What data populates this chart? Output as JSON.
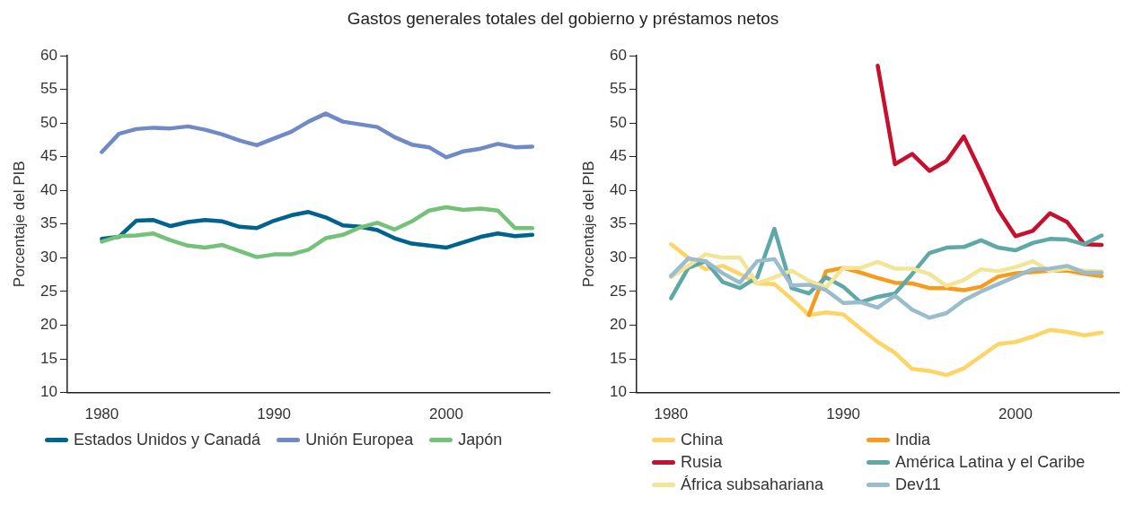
{
  "chart_data": [
    {
      "type": "line",
      "title": "Gastos generales totales del gobierno y préstamos netos",
      "ylabel": "Porcentaje del PIB",
      "x": [
        1980,
        1981,
        1982,
        1983,
        1984,
        1985,
        1986,
        1987,
        1988,
        1989,
        1990,
        1991,
        1992,
        1993,
        1994,
        1995,
        1996,
        1997,
        1998,
        1999,
        2000,
        2001,
        2002,
        2003,
        2004,
        2005
      ],
      "xlim": [
        1978,
        2006
      ],
      "xticks": [
        1980,
        1990,
        2000
      ],
      "ylim": [
        10,
        60
      ],
      "yticks": [
        10,
        15,
        20,
        25,
        30,
        35,
        40,
        45,
        50,
        55,
        60
      ],
      "legend": "bottom",
      "marker": "none",
      "series": [
        {
          "name": "Estados Unidos y Canadá",
          "color": "#00628f",
          "values": [
            32.8,
            33.1,
            35.5,
            35.6,
            34.7,
            35.3,
            35.6,
            35.4,
            34.6,
            34.4,
            35.5,
            36.3,
            36.8,
            36.0,
            34.8,
            34.6,
            34.1,
            32.9,
            32.1,
            31.8,
            31.5,
            32.3,
            33.1,
            33.6,
            33.2,
            33.4
          ]
        },
        {
          "name": "Unión Europea",
          "color": "#7089c9",
          "values": [
            45.7,
            48.4,
            49.1,
            49.3,
            49.2,
            49.5,
            49.0,
            48.3,
            47.4,
            46.7,
            47.7,
            48.7,
            50.2,
            51.4,
            50.2,
            49.8,
            49.4,
            47.9,
            46.8,
            46.4,
            44.9,
            45.8,
            46.2,
            46.9,
            46.4,
            46.5
          ]
        },
        {
          "name": "Japón",
          "color": "#74c27a",
          "values": [
            32.4,
            33.2,
            33.3,
            33.6,
            32.6,
            31.8,
            31.5,
            31.9,
            31.0,
            30.1,
            30.5,
            30.5,
            31.2,
            32.9,
            33.4,
            34.5,
            35.2,
            34.2,
            35.4,
            37.0,
            37.5,
            37.1,
            37.3,
            37.0,
            34.4,
            34.4
          ]
        }
      ]
    },
    {
      "type": "line",
      "ylabel": "Porcentaje del PIB",
      "x": [
        1980,
        1981,
        1982,
        1983,
        1984,
        1985,
        1986,
        1987,
        1988,
        1989,
        1990,
        1991,
        1992,
        1993,
        1994,
        1995,
        1996,
        1997,
        1998,
        1999,
        2000,
        2001,
        2002,
        2003,
        2004,
        2005
      ],
      "xlim": [
        1978,
        2006
      ],
      "xticks": [
        1980,
        1990,
        2000
      ],
      "ylim": [
        10,
        60
      ],
      "yticks": [
        10,
        15,
        20,
        25,
        30,
        35,
        40,
        45,
        50,
        55,
        60
      ],
      "legend": "bottom",
      "marker": "none",
      "series": [
        {
          "name": "China",
          "color": "#fdd466",
          "values": [
            32.0,
            30.0,
            28.3,
            28.8,
            27.6,
            26.2,
            26.1,
            23.9,
            21.5,
            21.9,
            21.6,
            19.5,
            17.5,
            15.9,
            13.5,
            13.2,
            12.6,
            13.6,
            15.4,
            17.2,
            17.5,
            18.3,
            19.3,
            19.0,
            18.5,
            18.9
          ]
        },
        {
          "name": "India",
          "color": "#f89a1c",
          "values": [
            null,
            null,
            null,
            null,
            null,
            null,
            null,
            null,
            21.5,
            28.0,
            28.5,
            27.8,
            27.0,
            26.3,
            26.2,
            25.5,
            25.5,
            25.2,
            25.7,
            27.2,
            27.7,
            27.9,
            28.1,
            28.1,
            27.6,
            27.3
          ]
        },
        {
          "name": "Rusia",
          "color": "#c8102e",
          "values": [
            null,
            null,
            null,
            null,
            null,
            null,
            null,
            null,
            null,
            null,
            null,
            null,
            58.5,
            43.9,
            45.4,
            42.9,
            44.4,
            48.0,
            42.7,
            37.1,
            33.2,
            34.0,
            36.6,
            35.3,
            32.0,
            31.9
          ]
        },
        {
          "name": "América Latina y el Caribe",
          "color": "#5fa8a8",
          "values": [
            24.0,
            28.5,
            29.5,
            26.4,
            25.5,
            27.1,
            34.3,
            25.5,
            24.7,
            27.1,
            25.7,
            23.4,
            24.2,
            24.7,
            27.6,
            30.7,
            31.5,
            31.6,
            32.6,
            31.5,
            31.1,
            32.2,
            32.8,
            32.7,
            32.0,
            33.3
          ]
        },
        {
          "name": "África subsahariana",
          "color": "#f2e596",
          "values": [
            27.1,
            28.8,
            30.5,
            30.0,
            30.0,
            26.2,
            27.1,
            28.1,
            26.6,
            25.6,
            28.5,
            28.5,
            29.4,
            28.4,
            28.4,
            27.6,
            25.8,
            26.7,
            28.3,
            28.0,
            28.6,
            29.5,
            28.0,
            28.4,
            28.1,
            28.0
          ]
        },
        {
          "name": "Dev11",
          "color": "#9abccc",
          "values": [
            27.3,
            29.9,
            29.5,
            27.7,
            26.3,
            29.5,
            29.8,
            25.9,
            26.0,
            25.2,
            23.3,
            23.4,
            22.6,
            24.4,
            22.3,
            21.1,
            21.8,
            23.7,
            25.0,
            26.1,
            27.2,
            28.3,
            28.4,
            28.8,
            27.8,
            27.8
          ]
        }
      ]
    }
  ]
}
